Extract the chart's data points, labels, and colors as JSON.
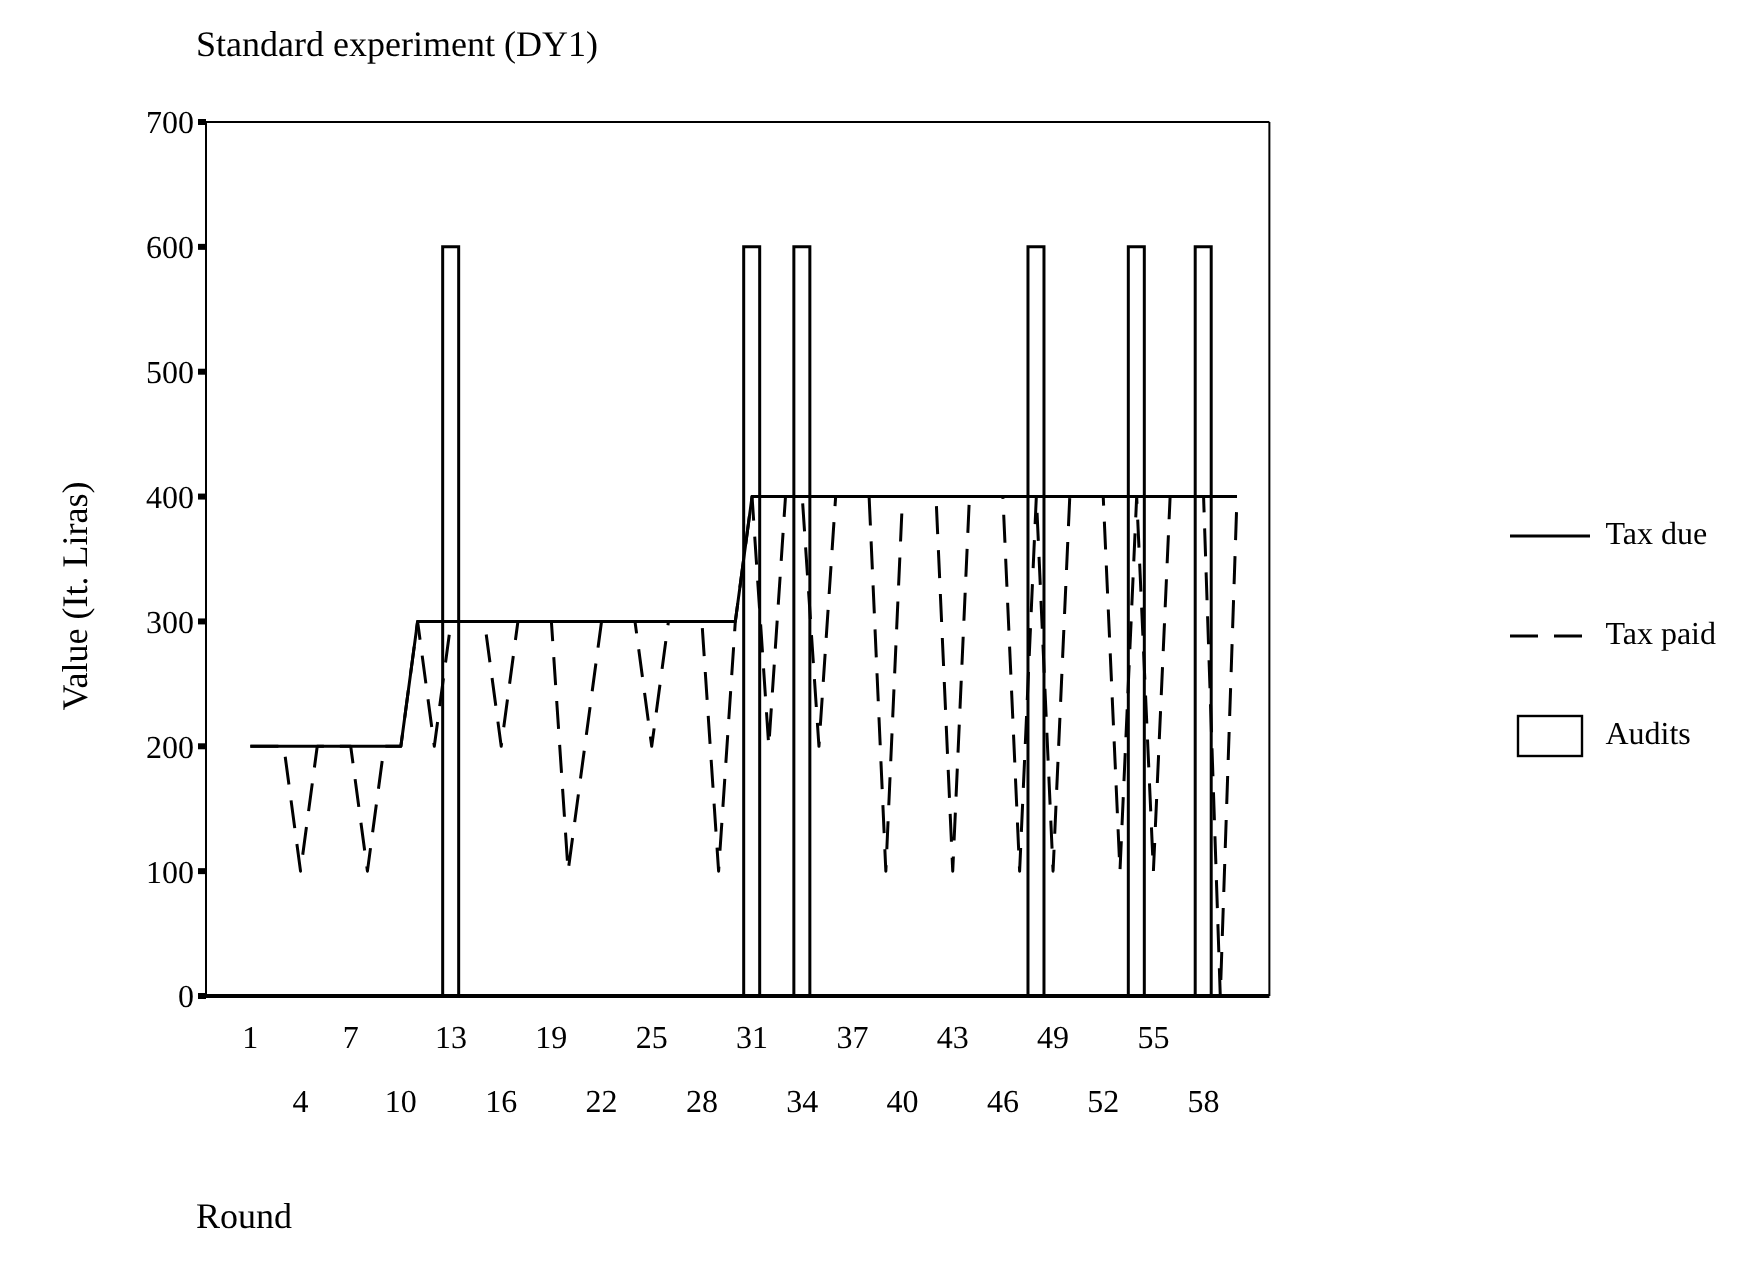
{
  "chart_data": {
    "type": "line",
    "title": "Standard experiment (DY1)",
    "xlabel": "Round",
    "ylabel": "Value (It. Liras)",
    "categories": [
      "1",
      null,
      null,
      "4",
      null,
      null,
      "7",
      null,
      null,
      "10",
      null,
      null,
      "13",
      null,
      null,
      "16",
      null,
      null,
      "19",
      null,
      null,
      "22",
      null,
      null,
      "25",
      null,
      null,
      "28",
      null,
      null,
      "31",
      null,
      null,
      "34",
      null,
      null,
      "37",
      null,
      null,
      "40",
      null,
      null,
      "43",
      null,
      null,
      "46",
      null,
      null,
      "49",
      null,
      null,
      "52",
      null,
      null,
      "55",
      null,
      null,
      "58",
      null,
      null
    ],
    "series": [
      {
        "name": "Tax due",
        "color": "#000000",
        "line_style": "solid",
        "values": [
          200,
          200,
          200,
          200,
          200,
          200,
          200,
          200,
          200,
          200,
          300,
          300,
          300,
          300,
          300,
          300,
          300,
          300,
          300,
          300,
          300,
          300,
          300,
          300,
          300,
          300,
          300,
          300,
          300,
          300,
          400,
          400,
          400,
          400,
          400,
          400,
          400,
          400,
          400,
          400,
          400,
          400,
          400,
          400,
          400,
          400,
          400,
          400,
          400,
          400,
          400,
          400,
          400,
          400,
          400,
          400,
          400,
          400,
          400,
          400
        ]
      },
      {
        "name": "Tax paid",
        "color": "#000000",
        "line_style": "dashed",
        "values": [
          200,
          200,
          200,
          100,
          200,
          200,
          200,
          100,
          200,
          200,
          300,
          200,
          300,
          300,
          300,
          200,
          300,
          300,
          300,
          100,
          200,
          300,
          300,
          300,
          200,
          300,
          300,
          300,
          100,
          300,
          400,
          200,
          400,
          400,
          200,
          400,
          400,
          400,
          100,
          400,
          400,
          400,
          100,
          400,
          400,
          400,
          100,
          400,
          100,
          400,
          400,
          400,
          100,
          400,
          100,
          400,
          400,
          400,
          0,
          400
        ]
      },
      {
        "name": "Audits",
        "type": "bar",
        "color": "#ffffff",
        "values": [
          null,
          null,
          null,
          null,
          null,
          null,
          null,
          null,
          null,
          null,
          null,
          null,
          600,
          null,
          null,
          null,
          null,
          null,
          null,
          null,
          null,
          null,
          null,
          null,
          null,
          null,
          null,
          null,
          null,
          null,
          600,
          null,
          null,
          600,
          null,
          null,
          null,
          null,
          null,
          null,
          null,
          null,
          null,
          null,
          null,
          null,
          null,
          600,
          null,
          null,
          null,
          null,
          null,
          600,
          null,
          null,
          null,
          600,
          null,
          null
        ]
      }
    ],
    "ylim": [
      0,
      700
    ],
    "yticks": [
      0,
      100,
      200,
      300,
      400,
      500,
      600,
      700
    ],
    "grid": false,
    "legend": "right"
  }
}
